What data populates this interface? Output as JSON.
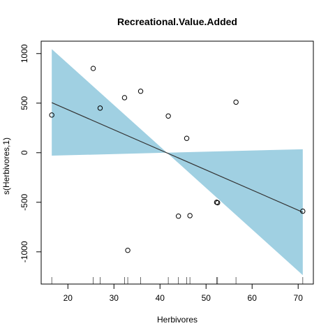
{
  "chart_data": {
    "type": "scatter",
    "title": "Recreational.Value.Added",
    "xlabel": "Herbivores",
    "ylabel": "s(Herbivores,1)",
    "xlim": [
      14.2,
      73.3
    ],
    "ylim": [
      -1325,
      1125
    ],
    "x_ticks": [
      20,
      30,
      40,
      50,
      60,
      70
    ],
    "y_ticks": [
      -1000,
      -500,
      0,
      500,
      1000
    ],
    "x_tick_labels": [
      "20",
      "30",
      "40",
      "50",
      "60",
      "70"
    ],
    "y_tick_labels": [
      "-1000",
      "-500",
      "0",
      "500",
      "1000"
    ],
    "fit_line": {
      "x": [
        16.5,
        71.0
      ],
      "y": [
        505,
        -600
      ]
    },
    "confidence_band": {
      "color": "#a0d0e2",
      "x": [
        16.5,
        41.5,
        71.0
      ],
      "upper": [
        1045,
        0,
        35
      ],
      "lower": [
        -30,
        0,
        -1235
      ]
    },
    "points": [
      {
        "x": 16.5,
        "y": 380
      },
      {
        "x": 25.5,
        "y": 850
      },
      {
        "x": 27.0,
        "y": 450
      },
      {
        "x": 32.3,
        "y": 555
      },
      {
        "x": 33.0,
        "y": -985
      },
      {
        "x": 35.8,
        "y": 620
      },
      {
        "x": 41.8,
        "y": 370
      },
      {
        "x": 44.0,
        "y": -640
      },
      {
        "x": 45.8,
        "y": 145
      },
      {
        "x": 46.5,
        "y": -635
      },
      {
        "x": 52.3,
        "y": -500
      },
      {
        "x": 52.5,
        "y": -505
      },
      {
        "x": 56.5,
        "y": 510
      },
      {
        "x": 71.0,
        "y": -590
      }
    ],
    "rug": [
      16.5,
      25.5,
      27.0,
      32.3,
      33.0,
      35.8,
      41.8,
      44.0,
      45.8,
      46.5,
      52.3,
      52.5,
      56.5,
      71.0
    ],
    "grid": false,
    "legend": "none"
  }
}
